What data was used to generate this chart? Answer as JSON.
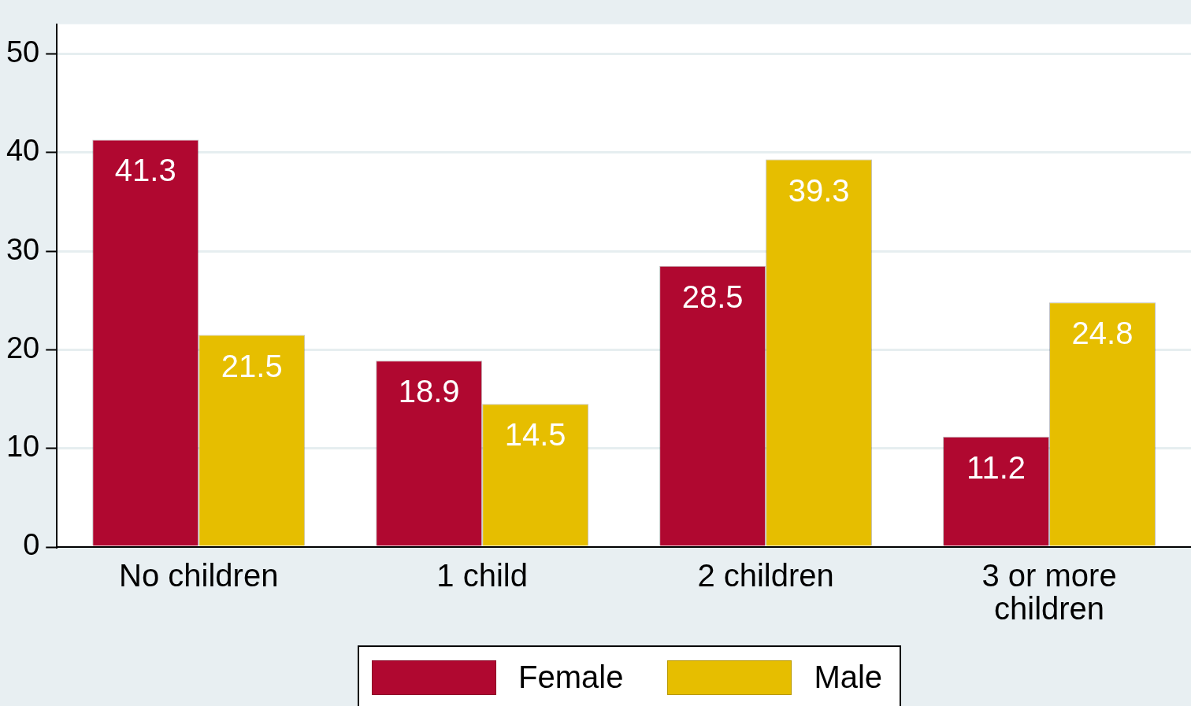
{
  "chart_data": {
    "type": "bar",
    "categories": [
      "No children",
      "1 child",
      "2 children",
      "3 or more children"
    ],
    "series": [
      {
        "name": "Female",
        "color": "#b00830",
        "values": [
          41.3,
          18.9,
          28.5,
          11.2
        ]
      },
      {
        "name": "Male",
        "color": "#e6be00",
        "values": [
          21.5,
          14.5,
          39.3,
          24.8
        ]
      }
    ],
    "ylim": [
      0,
      53
    ],
    "yticks": [
      0,
      10,
      20,
      30,
      40,
      50
    ],
    "grid": "y",
    "legend": "bottom",
    "data_labels": true
  }
}
